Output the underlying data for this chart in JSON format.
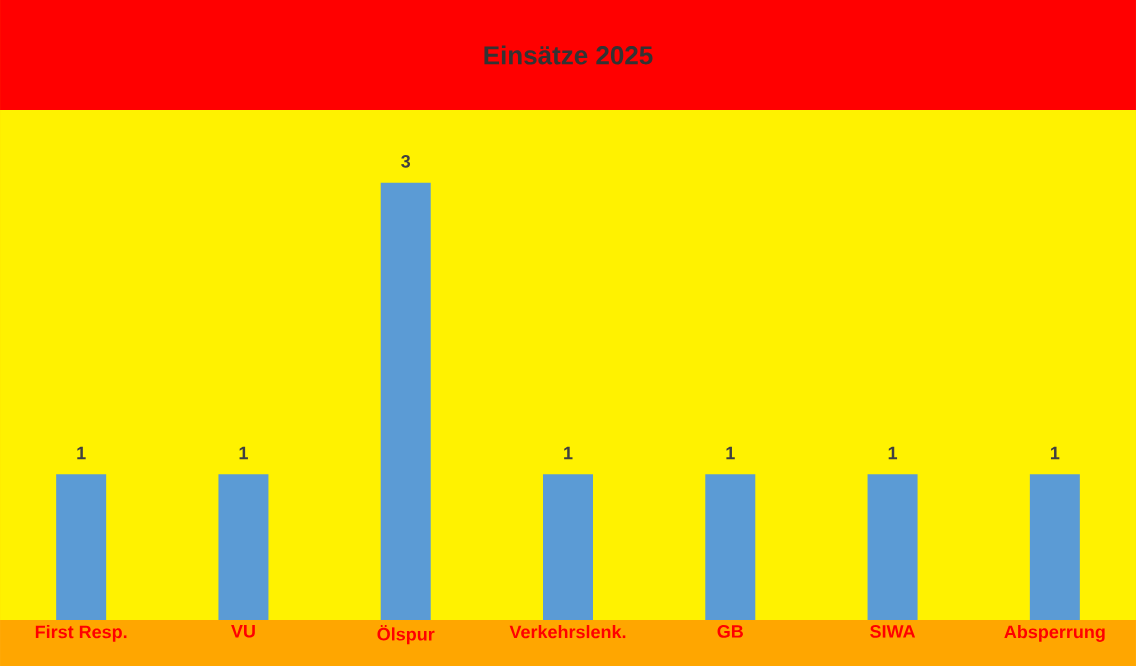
{
  "chart_data": {
    "type": "bar",
    "title": "Einsätze  2025",
    "categories": [
      "First Resp.",
      "VU",
      "Ölspur",
      "Verkehrslenk.",
      "GB",
      "SIWA",
      "Absperrung"
    ],
    "values": [
      1,
      1,
      3,
      1,
      1,
      1,
      1
    ],
    "color": "#5b9bd5",
    "data_labels": true,
    "tick_labels": "x"
  }
}
